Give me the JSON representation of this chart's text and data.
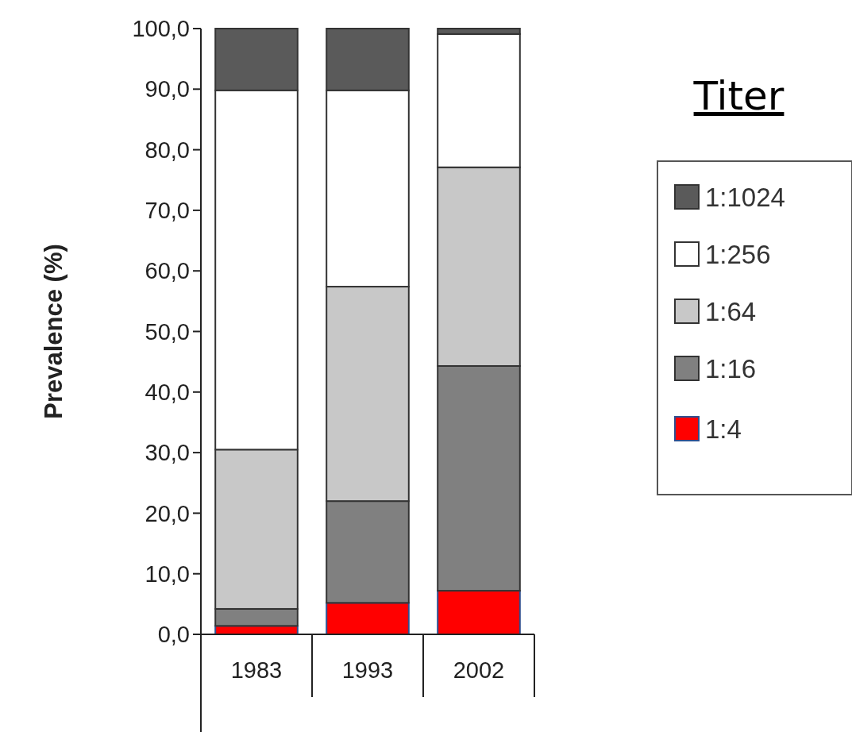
{
  "chart_data": {
    "type": "bar",
    "stacked": true,
    "categories": [
      "1983",
      "1993",
      "2002"
    ],
    "ylabel": "Prevalence (%)",
    "legend_title": "Titer",
    "legend": "right",
    "ylim": [
      0,
      100
    ],
    "yticks": [
      {
        "value": 0,
        "label": "0,0"
      },
      {
        "value": 10,
        "label": "10,0"
      },
      {
        "value": 20,
        "label": "20,0"
      },
      {
        "value": 30,
        "label": "30,0"
      },
      {
        "value": 40,
        "label": "40,0"
      },
      {
        "value": 50,
        "label": "50,0"
      },
      {
        "value": 60,
        "label": "60,0"
      },
      {
        "value": 70,
        "label": "70,0"
      },
      {
        "value": 80,
        "label": "80,0"
      },
      {
        "value": 90,
        "label": "90,0"
      },
      {
        "value": 100,
        "label": "100,0"
      }
    ],
    "series": [
      {
        "name": "1:4",
        "color": "#ff0000",
        "values": [
          1.4,
          5.2,
          7.2
        ]
      },
      {
        "name": "1:16",
        "color": "#808080",
        "values": [
          2.8,
          16.8,
          37.1
        ]
      },
      {
        "name": "1:64",
        "color": "#c8c8c8",
        "values": [
          26.3,
          35.4,
          32.8
        ]
      },
      {
        "name": "1:256",
        "color": "#ffffff",
        "values": [
          59.3,
          32.4,
          22.0
        ]
      },
      {
        "name": "1:1024",
        "color": "#5a5a5a",
        "values": [
          10.2,
          10.2,
          0.9
        ]
      }
    ]
  }
}
